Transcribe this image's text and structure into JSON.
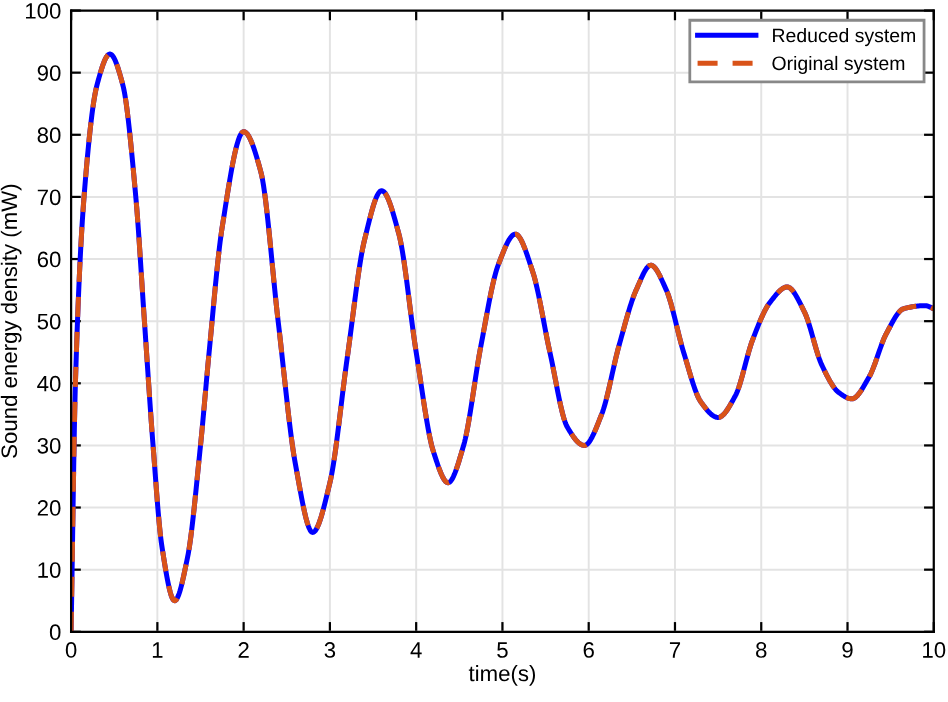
{
  "chart_data": {
    "type": "line",
    "xlabel": "time(s)",
    "ylabel": "Sound energy density (mW)",
    "x": [
      0,
      0.05,
      0.15,
      0.3,
      0.45,
      0.6,
      0.75,
      0.85,
      0.95,
      1.05,
      1.2,
      1.35,
      1.5,
      1.6,
      1.75,
      2.0,
      2.2,
      2.4,
      2.6,
      2.8,
      3.0,
      3.2,
      3.4,
      3.6,
      3.8,
      4.0,
      4.2,
      4.37,
      4.55,
      4.75,
      4.95,
      5.15,
      5.35,
      5.55,
      5.75,
      5.95,
      6.15,
      6.35,
      6.55,
      6.72,
      6.9,
      7.1,
      7.3,
      7.5,
      7.7,
      7.9,
      8.1,
      8.3,
      8.5,
      8.7,
      8.9,
      9.05,
      9.25,
      9.45,
      9.65,
      9.9,
      10
    ],
    "series": [
      {
        "name": "Reduced system",
        "color": "#0000ff",
        "line_style": "solid",
        "values": [
          0,
          40,
          70,
          88,
          93,
          88,
          70,
          50,
          30,
          14,
          5,
          12,
          30,
          45,
          65,
          80.5,
          74,
          50,
          27,
          16,
          24,
          44,
          63,
          71,
          64,
          45,
          29,
          24,
          30,
          46,
          59,
          64,
          58,
          45,
          33,
          30,
          35,
          46,
          55,
          59,
          55,
          45,
          37,
          34.5,
          38,
          47,
          53,
          55.5,
          51.5,
          43,
          38.5,
          37.5,
          41,
          48,
          52,
          52.5,
          52
        ]
      },
      {
        "name": "Original system",
        "color": "#d95319",
        "line_style": "dashed",
        "values": [
          0,
          40,
          70,
          88,
          93,
          88,
          70,
          50,
          30,
          14,
          5,
          12,
          30,
          45,
          65,
          80.5,
          74,
          50,
          27,
          16,
          24,
          44,
          63,
          71,
          64,
          45,
          29,
          24,
          30,
          46,
          59,
          64,
          58,
          45,
          33,
          30,
          35,
          46,
          55,
          59,
          55,
          45,
          37,
          34.5,
          38,
          47,
          53,
          55.5,
          51.5,
          43,
          38.5,
          37.5,
          41,
          48,
          52,
          52.5,
          52
        ]
      }
    ],
    "xlim": [
      0,
      10
    ],
    "ylim": [
      0,
      100
    ],
    "xticks": [
      0,
      1,
      2,
      3,
      4,
      5,
      6,
      7,
      8,
      9,
      10
    ],
    "yticks": [
      0,
      10,
      20,
      30,
      40,
      50,
      60,
      70,
      80,
      90,
      100
    ],
    "grid": true,
    "legend": "top right",
    "marker": "none"
  }
}
